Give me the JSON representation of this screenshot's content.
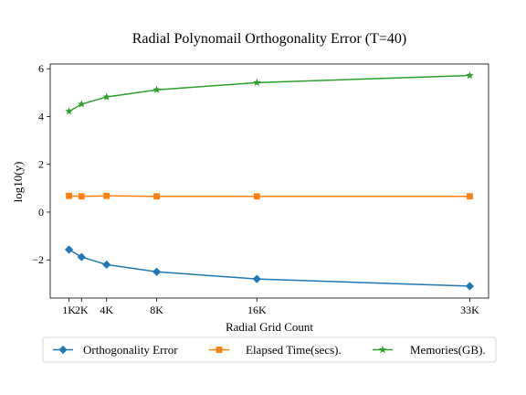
{
  "chart_data": {
    "type": "line",
    "title": "Radial Polynomail Orthogonality Error (T=40)",
    "xlabel": "Radial Grid Count",
    "ylabel": "log10(y)",
    "x": [
      1000,
      2000,
      4000,
      8000,
      16000,
      33000
    ],
    "x_tick_values": [
      1000,
      2000,
      4000,
      8000,
      16000,
      33000
    ],
    "x_tick_labels": [
      "1K",
      "2K",
      "4K",
      "8K",
      "16K",
      "33K"
    ],
    "y_tick_values": [
      -2,
      0,
      2,
      4,
      6
    ],
    "y_tick_labels": [
      "−2",
      "0",
      "2",
      "4",
      "6"
    ],
    "xlim": [
      -500,
      34500
    ],
    "ylim": [
      -3.6,
      6.2
    ],
    "grid": false,
    "legend_position": "bottom",
    "series": [
      {
        "name": "Orthogonality Error",
        "color": "#1f77b4",
        "marker": "diamond",
        "values": [
          -1.57,
          -1.88,
          -2.2,
          -2.5,
          -2.8,
          -3.1
        ]
      },
      {
        "name": "Elapsed Time(secs).",
        "color": "#ff7f0e",
        "marker": "square",
        "values": [
          0.68,
          0.66,
          0.68,
          0.66,
          0.66,
          0.66
        ]
      },
      {
        "name": "Memories(GB).",
        "color": "#2ca02c",
        "marker": "star",
        "values": [
          4.22,
          4.52,
          4.82,
          5.12,
          5.42,
          5.72
        ]
      }
    ]
  }
}
